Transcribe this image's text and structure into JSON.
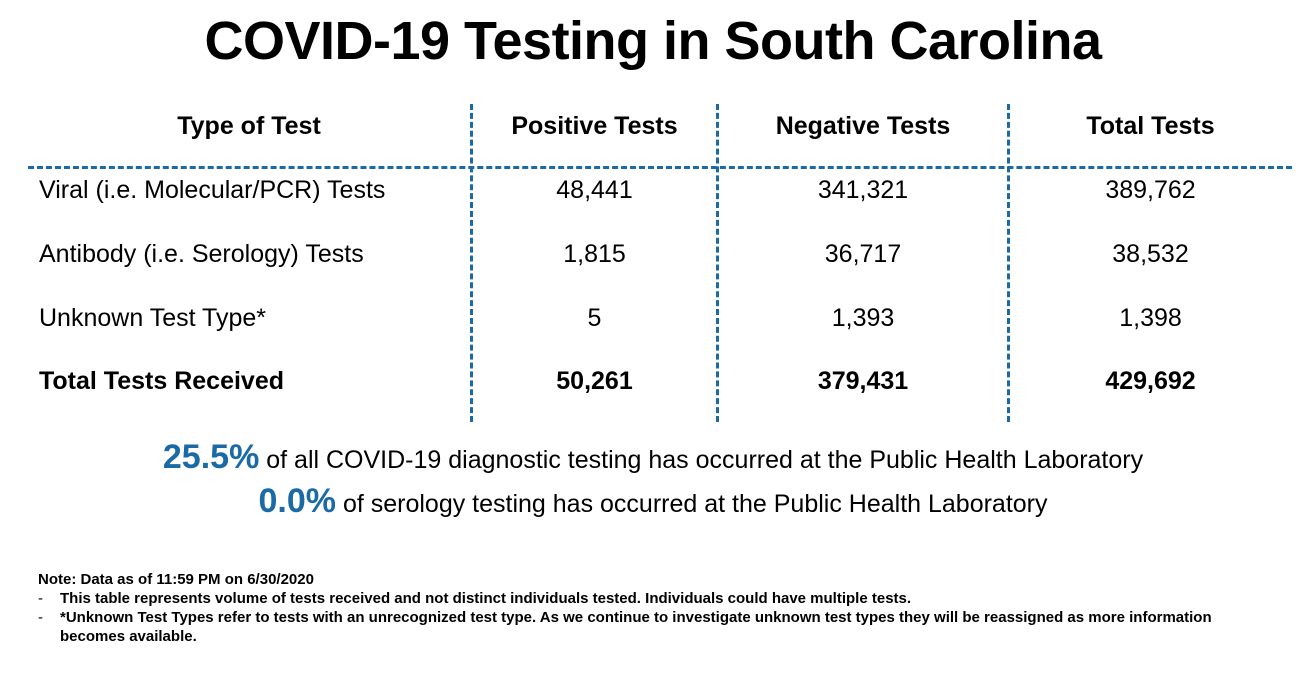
{
  "title": "COVID-19 Testing in South Carolina",
  "table": {
    "headers": [
      "Type of Test",
      "Positive Tests",
      "Negative Tests",
      "Total Tests"
    ],
    "rows": [
      {
        "type": "Viral (i.e. Molecular/PCR) Tests",
        "positive": "48,441",
        "negative": "341,321",
        "total": "389,762"
      },
      {
        "type": "Antibody (i.e. Serology) Tests",
        "positive": "1,815",
        "negative": "36,717",
        "total": "38,532"
      },
      {
        "type": "Unknown Test Type*",
        "positive": "5",
        "negative": "1,393",
        "total": "1,398"
      }
    ],
    "total_row": {
      "type": "Total Tests Received",
      "positive": "50,261",
      "negative": "379,431",
      "total": "429,692"
    }
  },
  "stats": [
    {
      "percent": "25.5%",
      "text": "of all COVID-19 diagnostic testing has occurred at the Public Health Laboratory"
    },
    {
      "percent": "0.0%",
      "text": "of serology testing has occurred at the Public Health Laboratory"
    }
  ],
  "notes": {
    "heading": "Note: Data as of 11:59 PM on 6/30/2020",
    "bullet": "-",
    "items": [
      "This table represents volume of tests received and not distinct individuals tested. Individuals could have multiple tests.",
      "*Unknown Test Types refer to tests with an unrecognized test type. As we continue to investigate unknown test types they will be reassigned as more information becomes available."
    ]
  },
  "colors": {
    "accent": "#1a6aa5",
    "text": "#000000",
    "background": "#ffffff"
  }
}
